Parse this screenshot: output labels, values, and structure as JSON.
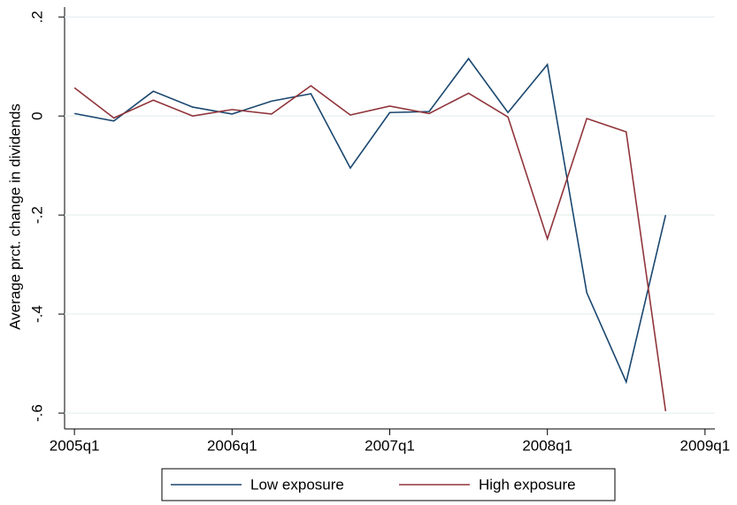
{
  "chart_data": {
    "type": "line",
    "y_label": "Average prct. change in dividends",
    "x": [
      180,
      181,
      182,
      183,
      184,
      185,
      186,
      187,
      188,
      189,
      190,
      191,
      192,
      193,
      194,
      195
    ],
    "xlim": [
      179.75,
      196.25
    ],
    "xticks": [
      {
        "value": 180,
        "label": "2005q1"
      },
      {
        "value": 184,
        "label": "2006q1"
      },
      {
        "value": 188,
        "label": "2007q1"
      },
      {
        "value": 192,
        "label": "2008q1"
      },
      {
        "value": 196,
        "label": "2009q1"
      }
    ],
    "ylim": [
      -0.632,
      0.22
    ],
    "yticks": [
      {
        "value": 0.2,
        "label": ".2"
      },
      0,
      {
        "value": -0.2,
        "label": "-.2"
      },
      {
        "value": -0.4,
        "label": "-.4"
      },
      {
        "value": -0.6,
        "label": "-.6"
      }
    ],
    "grid": true,
    "legend": "bottom",
    "series": [
      {
        "name": "Low exposure",
        "color": "#1a476f",
        "values": [
          0.005,
          -0.01,
          0.05,
          0.018,
          0.004,
          0.03,
          0.045,
          -0.105,
          0.007,
          0.009,
          0.116,
          0.007,
          0.104,
          -0.357,
          -0.537,
          -0.2
        ]
      },
      {
        "name": "High exposure",
        "color": "#90353b",
        "values": [
          0.057,
          -0.004,
          0.032,
          0,
          0.013,
          0.004,
          0.061,
          0.002,
          0.02,
          0.005,
          0.046,
          -0.002,
          -0.248,
          -0.005,
          -0.032,
          -0.596
        ]
      }
    ]
  }
}
